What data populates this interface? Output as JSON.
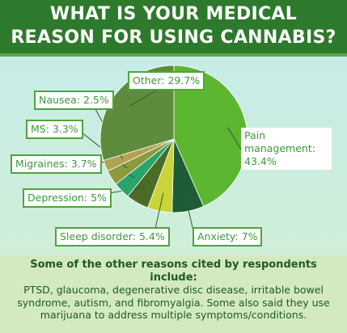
{
  "chart_data": {
    "type": "pie",
    "title": "WHAT IS YOUR MEDICAL REASON FOR USING CANNABIS?",
    "categories": [
      "Pain management:",
      "Anxiety:",
      "Sleep disorder:",
      "Depression:",
      "Migraines:",
      "MS:",
      "Nausea:",
      "Other:"
    ],
    "values": [
      43.4,
      7,
      5.4,
      5,
      3.7,
      3.3,
      2.5,
      29.7
    ],
    "value_labels": [
      "43.4%",
      "7%",
      "5.4%",
      "5%",
      "3.7%",
      "3.3%",
      "2.5%",
      "29.7%"
    ],
    "colors": [
      "#5cb630",
      "#1f5c36",
      "#c9d43a",
      "#4b6b26",
      "#2ba36a",
      "#8c9a3c",
      "#b2a353",
      "#5f8b3d"
    ],
    "note": {
      "heading": "Some of the other reasons cited by respondents include:",
      "body": "PTSD, glaucoma, degenerative disc disease, irritable bowel syndrome, autism, and fibromyalgia. Some also said they use marijuana to address multiple symptoms/conditions."
    }
  }
}
